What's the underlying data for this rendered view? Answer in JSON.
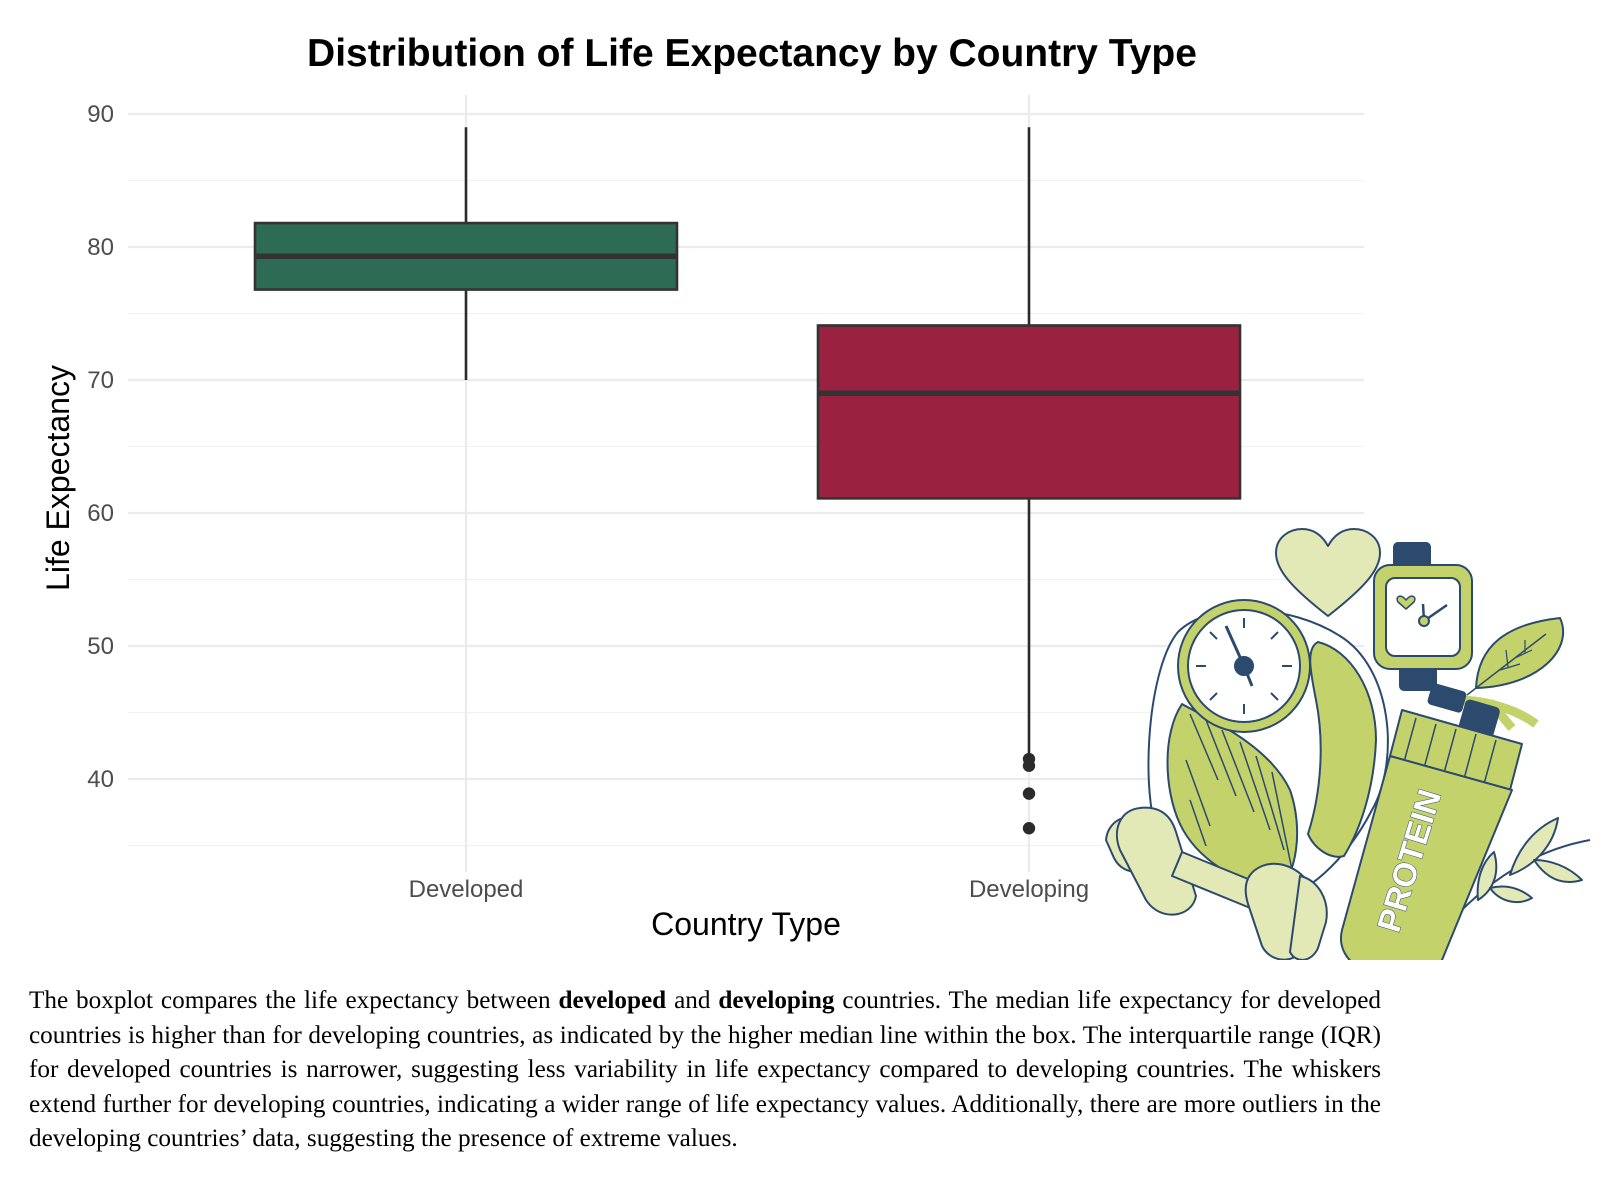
{
  "chart_data": {
    "type": "boxplot",
    "title": "Distribution of Life Expectancy by Country Type",
    "xlabel": "Country Type",
    "ylabel": "Life Expectancy",
    "ylim": [
      33,
      91
    ],
    "yticks": [
      40,
      50,
      60,
      70,
      80,
      90
    ],
    "grid": true,
    "categories": [
      "Developed",
      "Developing"
    ],
    "boxes": [
      {
        "category": "Developed",
        "color": "#2e6b55",
        "min": 70,
        "q1": 76.8,
        "median": 79.3,
        "q3": 81.8,
        "max": 89,
        "outliers": []
      },
      {
        "category": "Developing",
        "color": "#9a2240",
        "min": 41.5,
        "q1": 61.1,
        "median": 69.0,
        "q3": 74.1,
        "max": 89,
        "outliers": [
          41.5,
          41.0,
          38.9,
          36.3
        ]
      }
    ]
  },
  "caption": {
    "parts": [
      {
        "text": "The boxplot compares the life expectancy between ",
        "bold": false
      },
      {
        "text": "developed",
        "bold": true
      },
      {
        "text": " and ",
        "bold": false
      },
      {
        "text": "developing",
        "bold": true
      },
      {
        "text": " countries.  The median life expectancy for developed countries is higher than for developing countries, as indicated by the higher median line within the box.  The interquartile range (IQR) for developed countries is narrower, suggesting less variability in life expectancy compared to developing countries. The whiskers extend further for developing countries, indicating a wider range of life expectancy values.  Additionally, there are more outliers in the developing countries’ data, suggesting the presence of extreme values.",
        "bold": false
      }
    ]
  },
  "illustration": {
    "label": "PROTEIN",
    "icons": [
      "heart-icon",
      "smartwatch-icon",
      "leaf-icon",
      "scale-icon",
      "protein-shaker-icon",
      "dumbbell-icon",
      "branch-icon"
    ],
    "colors": {
      "lime": "#c3d26b",
      "pale": "#e3e9b6",
      "navy": "#2b4a6e"
    }
  }
}
